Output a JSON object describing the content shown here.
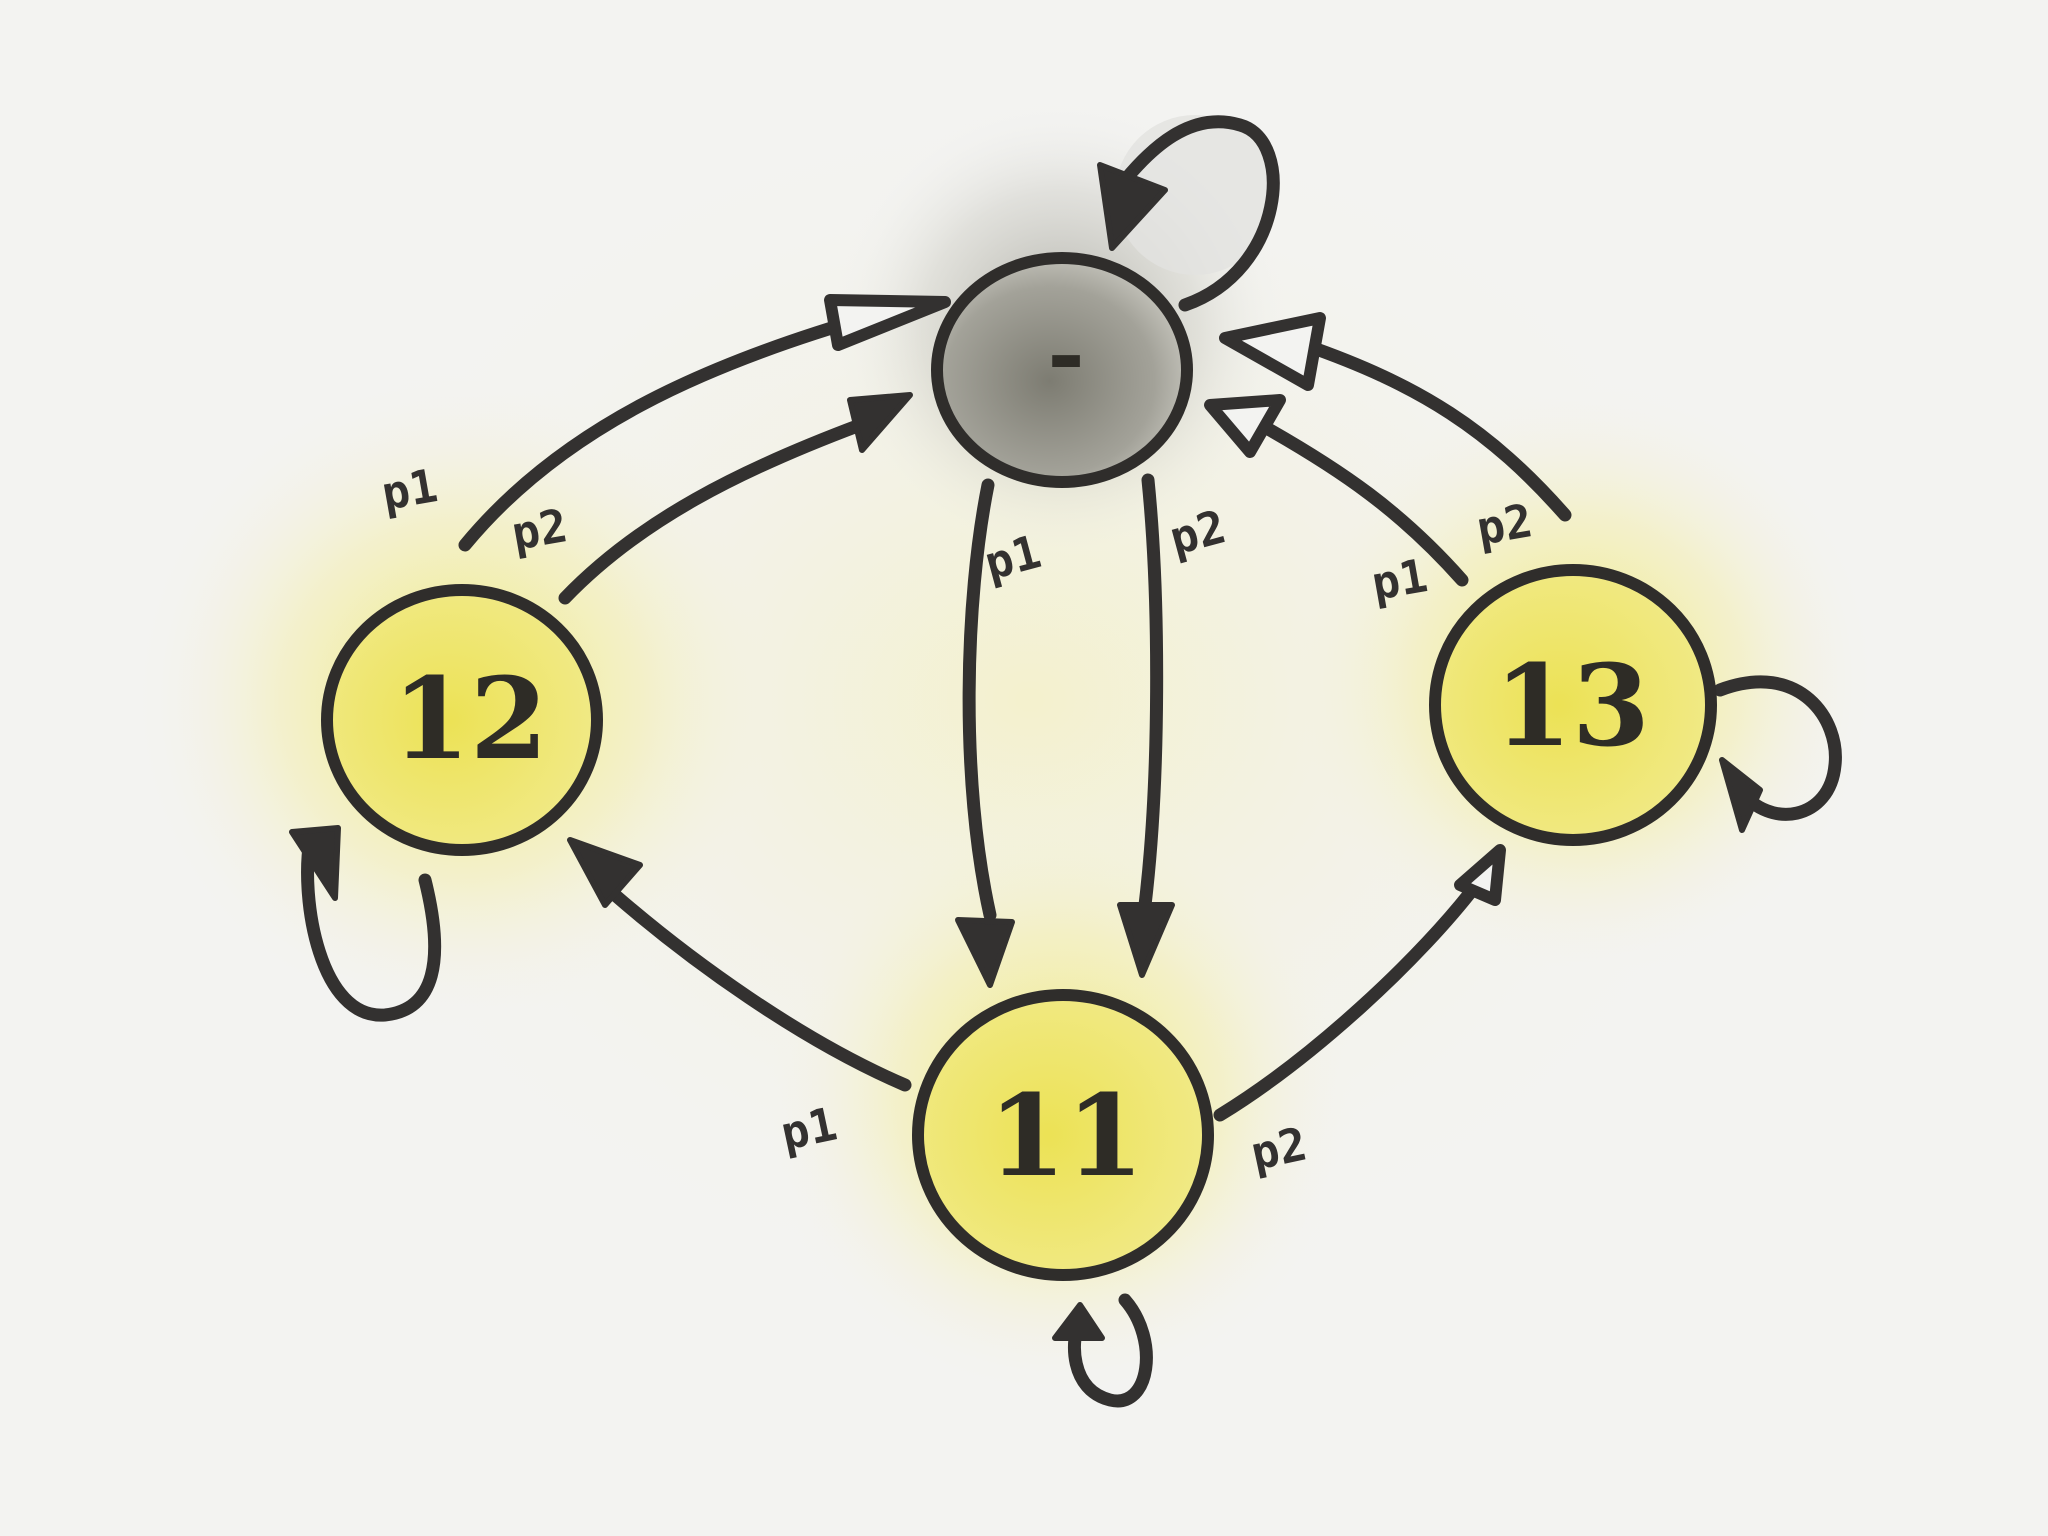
{
  "diagram": {
    "nodes": [
      {
        "id": "top",
        "label": "-",
        "fill": "#8c8b80",
        "glow": "#6f6e66"
      },
      {
        "id": "n12",
        "label": "12",
        "fill": "#efe46a",
        "glow": "#f0e64a"
      },
      {
        "id": "n13",
        "label": "13",
        "fill": "#efe46a",
        "glow": "#f0e64a"
      },
      {
        "id": "n11",
        "label": "11",
        "fill": "#efe46a",
        "glow": "#f0e64a"
      }
    ],
    "edges": [
      {
        "from": "n12",
        "to": "top",
        "label": "p1"
      },
      {
        "from": "n12",
        "to": "top",
        "label": "p2"
      },
      {
        "from": "n13",
        "to": "top",
        "label": "p1"
      },
      {
        "from": "n13",
        "to": "top",
        "label": "p2"
      },
      {
        "from": "top",
        "to": "n11",
        "label": "p1"
      },
      {
        "from": "top",
        "to": "n11",
        "label": "p2"
      },
      {
        "from": "n11",
        "to": "n12",
        "label": "p1"
      },
      {
        "from": "n11",
        "to": "n13",
        "label": "p2"
      },
      {
        "from": "top",
        "to": "top",
        "label": ""
      },
      {
        "from": "n12",
        "to": "n12",
        "label": ""
      },
      {
        "from": "n13",
        "to": "n13",
        "label": ""
      },
      {
        "from": "n11",
        "to": "n11",
        "label": ""
      }
    ]
  }
}
